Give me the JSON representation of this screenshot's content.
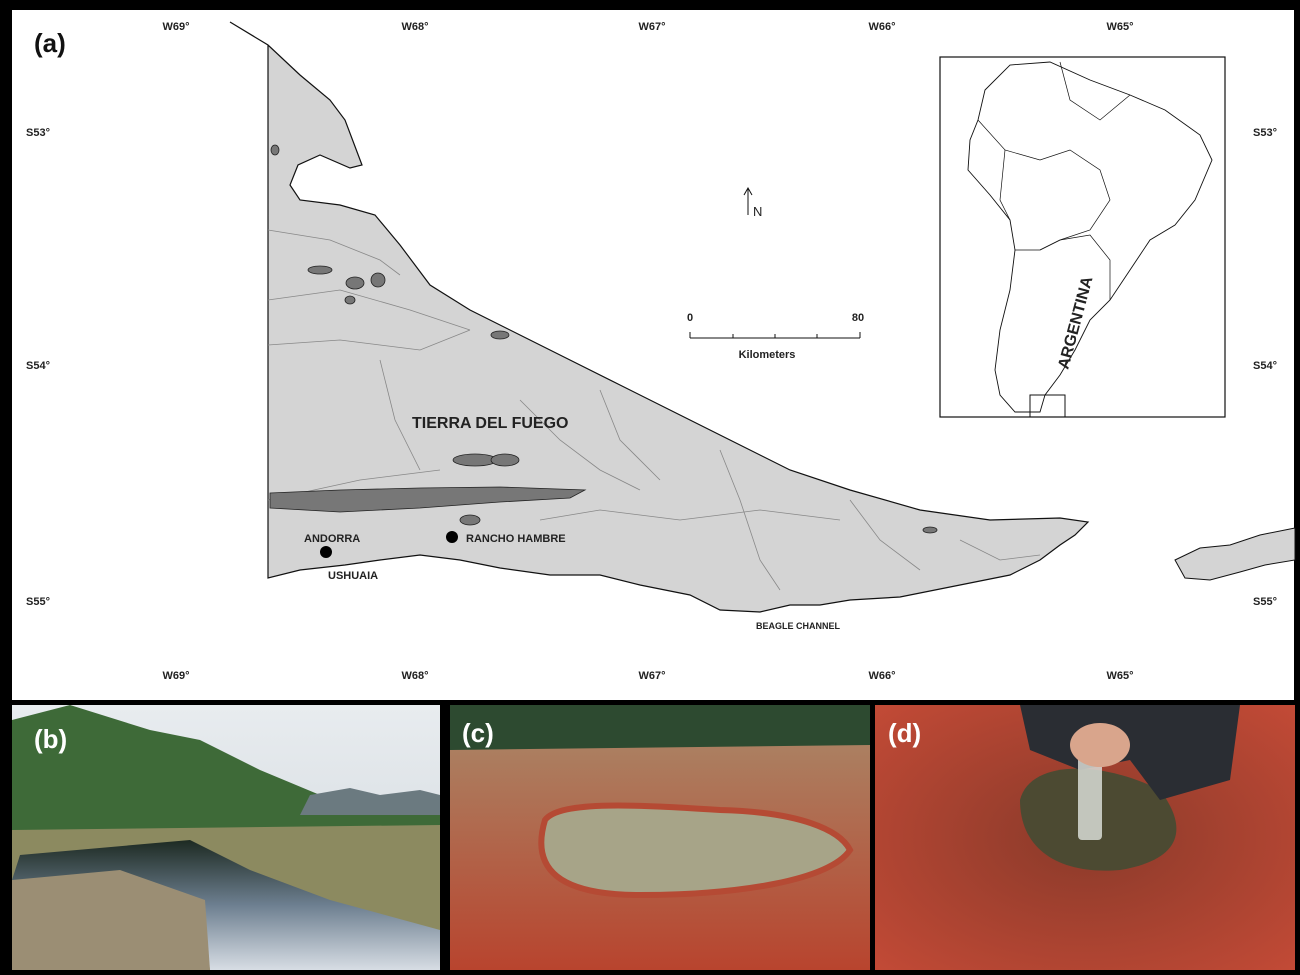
{
  "panel_a": {
    "label": "(a)",
    "longitudes": [
      "W69°",
      "W68°",
      "W67°",
      "W66°",
      "W65°"
    ],
    "latitudes": [
      "S53°",
      "S54°",
      "S55°"
    ],
    "north": "N",
    "scale": {
      "start": "0",
      "end": "80",
      "unit": "Kilometers"
    },
    "places": {
      "region": "TIERRA DEL FUEGO",
      "andorra": "ANDORRA",
      "ushuaia": "USHUAIA",
      "rancho_hambre": "RANCHO HAMBRE",
      "channel": "BEAGLE CHANNEL"
    },
    "inset_label": "ARGENTINA"
  },
  "panel_b": {
    "label": "(b)"
  },
  "panel_c": {
    "label": "(c)"
  },
  "panel_d": {
    "label": "(d)"
  }
}
